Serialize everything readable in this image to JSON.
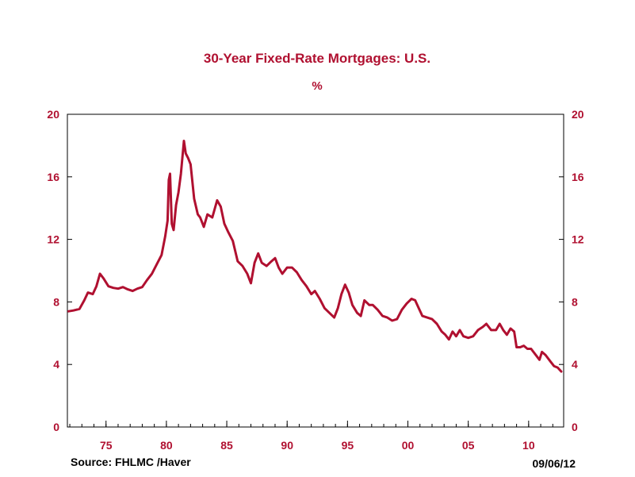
{
  "chart_data": {
    "type": "line",
    "title": "30-Year Fixed-Rate Mortgages: U.S.",
    "subtitle": "%",
    "source": "Source:  FHLMC /Haver",
    "date_stamp": "09/06/12",
    "xlim": [
      1971.8,
      2012.9
    ],
    "ylim": [
      0,
      20
    ],
    "x_tick_labels": [
      "75",
      "80",
      "85",
      "90",
      "95",
      "00",
      "05",
      "10"
    ],
    "x_tick_years": [
      1975,
      1980,
      1985,
      1990,
      1995,
      2000,
      2005,
      2010
    ],
    "y_ticks": [
      0,
      4,
      8,
      12,
      16,
      20
    ],
    "y_tick_labels": [
      "0",
      "4",
      "8",
      "12",
      "16",
      "20"
    ],
    "line_color": "#b01030",
    "series": [
      {
        "name": "30-Year Fixed-Rate Mortgage Rate",
        "x": [
          1971.9,
          1972.3,
          1972.8,
          1973.2,
          1973.5,
          1973.9,
          1974.2,
          1974.5,
          1974.8,
          1975.2,
          1975.6,
          1976.0,
          1976.4,
          1976.8,
          1977.2,
          1977.6,
          1978.0,
          1978.4,
          1978.8,
          1979.2,
          1979.6,
          1979.9,
          1980.1,
          1980.2,
          1980.3,
          1980.45,
          1980.6,
          1980.8,
          1981.0,
          1981.2,
          1981.45,
          1981.6,
          1981.8,
          1982.0,
          1982.3,
          1982.6,
          1982.8,
          1983.1,
          1983.4,
          1983.8,
          1984.2,
          1984.5,
          1984.8,
          1985.1,
          1985.5,
          1985.9,
          1986.3,
          1986.7,
          1987.0,
          1987.3,
          1987.6,
          1987.9,
          1988.3,
          1988.7,
          1989.0,
          1989.3,
          1989.6,
          1990.0,
          1990.4,
          1990.8,
          1991.2,
          1991.6,
          1992.0,
          1992.3,
          1992.7,
          1993.1,
          1993.5,
          1993.9,
          1994.2,
          1994.5,
          1994.8,
          1995.1,
          1995.4,
          1995.8,
          1996.1,
          1996.4,
          1996.8,
          1997.1,
          1997.5,
          1997.9,
          1998.3,
          1998.7,
          1999.1,
          1999.5,
          1999.9,
          2000.3,
          2000.6,
          2000.9,
          2001.2,
          2001.6,
          2002.0,
          2002.4,
          2002.8,
          2003.1,
          2003.4,
          2003.7,
          2004.0,
          2004.3,
          2004.6,
          2005.0,
          2005.4,
          2005.8,
          2006.2,
          2006.5,
          2006.9,
          2007.3,
          2007.6,
          2007.9,
          2008.2,
          2008.5,
          2008.8,
          2009.0,
          2009.3,
          2009.6,
          2009.9,
          2010.2,
          2010.6,
          2010.9,
          2011.1,
          2011.4,
          2011.8,
          2012.1,
          2012.4,
          2012.7
        ],
        "y": [
          7.4,
          7.45,
          7.55,
          8.1,
          8.6,
          8.5,
          9.0,
          9.8,
          9.5,
          9.0,
          8.9,
          8.85,
          8.95,
          8.8,
          8.7,
          8.85,
          8.95,
          9.4,
          9.8,
          10.4,
          11.0,
          12.2,
          13.2,
          15.8,
          16.2,
          13.0,
          12.6,
          14.2,
          15.0,
          16.2,
          18.3,
          17.5,
          17.2,
          16.8,
          14.6,
          13.6,
          13.4,
          12.8,
          13.6,
          13.4,
          14.5,
          14.1,
          13.0,
          12.5,
          11.9,
          10.6,
          10.3,
          9.8,
          9.2,
          10.5,
          11.1,
          10.5,
          10.3,
          10.6,
          10.8,
          10.2,
          9.8,
          10.2,
          10.2,
          9.9,
          9.4,
          9.0,
          8.5,
          8.7,
          8.2,
          7.6,
          7.3,
          7.0,
          7.6,
          8.5,
          9.1,
          8.6,
          7.8,
          7.3,
          7.1,
          8.1,
          7.8,
          7.8,
          7.5,
          7.1,
          7.0,
          6.8,
          6.9,
          7.5,
          7.9,
          8.2,
          8.1,
          7.6,
          7.1,
          7.0,
          6.9,
          6.6,
          6.1,
          5.9,
          5.6,
          6.1,
          5.8,
          6.2,
          5.8,
          5.7,
          5.8,
          6.2,
          6.4,
          6.6,
          6.2,
          6.2,
          6.6,
          6.2,
          5.9,
          6.3,
          6.1,
          5.1,
          5.1,
          5.2,
          5.0,
          5.0,
          4.6,
          4.3,
          4.8,
          4.6,
          4.2,
          3.9,
          3.8,
          3.55
        ]
      }
    ]
  }
}
